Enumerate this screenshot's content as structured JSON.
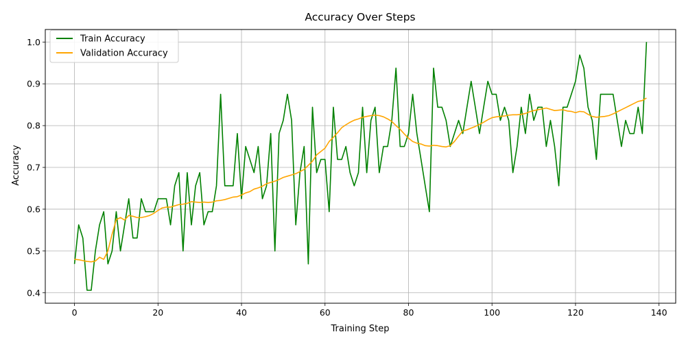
{
  "chart_data": {
    "type": "line",
    "title": "Accuracy Over Steps",
    "xlabel": "Training Step",
    "ylabel": "Accuracy",
    "xlim": [
      -7,
      144
    ],
    "ylim": [
      0.375,
      1.03
    ],
    "xticks": [
      0,
      20,
      40,
      60,
      80,
      100,
      120,
      140
    ],
    "yticks": [
      0.4,
      0.5,
      0.6,
      0.7,
      0.8,
      0.9,
      1.0
    ],
    "xtick_labels": [
      "0",
      "20",
      "40",
      "60",
      "80",
      "100",
      "120",
      "140"
    ],
    "ytick_labels": [
      "0.4",
      "0.5",
      "0.6",
      "0.7",
      "0.8",
      "0.9",
      "1.0"
    ],
    "grid": true,
    "legend_position": "top-left",
    "series": [
      {
        "name": "Train Accuracy",
        "color": "#008000",
        "values": [
          0.469,
          0.5625,
          0.531,
          0.406,
          0.406,
          0.5,
          0.5625,
          0.594,
          0.469,
          0.5,
          0.594,
          0.5,
          0.5625,
          0.625,
          0.531,
          0.531,
          0.625,
          0.594,
          0.594,
          0.594,
          0.625,
          0.625,
          0.625,
          0.5625,
          0.656,
          0.6875,
          0.5,
          0.6875,
          0.5625,
          0.656,
          0.6875,
          0.5625,
          0.594,
          0.594,
          0.656,
          0.875,
          0.656,
          0.656,
          0.656,
          0.781,
          0.625,
          0.75,
          0.719,
          0.6875,
          0.75,
          0.625,
          0.656,
          0.781,
          0.5,
          0.781,
          0.8125,
          0.875,
          0.8125,
          0.5625,
          0.6875,
          0.75,
          0.469,
          0.844,
          0.6875,
          0.719,
          0.719,
          0.594,
          0.844,
          0.719,
          0.719,
          0.75,
          0.6875,
          0.656,
          0.6875,
          0.844,
          0.6875,
          0.8125,
          0.844,
          0.6875,
          0.75,
          0.75,
          0.8125,
          0.9375,
          0.75,
          0.75,
          0.781,
          0.875,
          0.781,
          0.719,
          0.656,
          0.594,
          0.9375,
          0.844,
          0.844,
          0.8125,
          0.75,
          0.781,
          0.8125,
          0.781,
          0.844,
          0.906,
          0.844,
          0.781,
          0.844,
          0.906,
          0.875,
          0.875,
          0.8125,
          0.844,
          0.8125,
          0.6875,
          0.75,
          0.844,
          0.781,
          0.875,
          0.8125,
          0.844,
          0.844,
          0.75,
          0.8125,
          0.75,
          0.656,
          0.844,
          0.844,
          0.875,
          0.906,
          0.969,
          0.9375,
          0.844,
          0.8125,
          0.719,
          0.875,
          0.875,
          0.875,
          0.875,
          0.8125,
          0.75,
          0.8125,
          0.781,
          0.781,
          0.844,
          0.781,
          1.0
        ]
      },
      {
        "name": "Validation Accuracy",
        "color": "#FFA500",
        "values": [
          0.48,
          0.479,
          0.477,
          0.475,
          0.474,
          0.476,
          0.485,
          0.48,
          0.5,
          0.54,
          0.575,
          0.58,
          0.574,
          0.585,
          0.583,
          0.58,
          0.58,
          0.582,
          0.585,
          0.59,
          0.597,
          0.603,
          0.605,
          0.605,
          0.608,
          0.611,
          0.612,
          0.614,
          0.618,
          0.617,
          0.616,
          0.617,
          0.616,
          0.617,
          0.62,
          0.621,
          0.623,
          0.626,
          0.629,
          0.63,
          0.634,
          0.639,
          0.642,
          0.648,
          0.651,
          0.655,
          0.661,
          0.664,
          0.667,
          0.671,
          0.676,
          0.679,
          0.682,
          0.685,
          0.69,
          0.695,
          0.705,
          0.715,
          0.73,
          0.738,
          0.746,
          0.762,
          0.772,
          0.783,
          0.795,
          0.802,
          0.808,
          0.813,
          0.816,
          0.82,
          0.822,
          0.824,
          0.825,
          0.824,
          0.821,
          0.816,
          0.81,
          0.8,
          0.791,
          0.78,
          0.77,
          0.762,
          0.758,
          0.756,
          0.752,
          0.751,
          0.753,
          0.752,
          0.75,
          0.749,
          0.752,
          0.762,
          0.775,
          0.787,
          0.79,
          0.794,
          0.798,
          0.803,
          0.808,
          0.814,
          0.819,
          0.821,
          0.822,
          0.823,
          0.825,
          0.826,
          0.826,
          0.827,
          0.829,
          0.833,
          0.836,
          0.838,
          0.84,
          0.842,
          0.839,
          0.836,
          0.837,
          0.838,
          0.835,
          0.834,
          0.831,
          0.834,
          0.833,
          0.827,
          0.822,
          0.82,
          0.821,
          0.822,
          0.824,
          0.828,
          0.833,
          0.838,
          0.843,
          0.848,
          0.853,
          0.858,
          0.86,
          0.866
        ]
      }
    ]
  }
}
